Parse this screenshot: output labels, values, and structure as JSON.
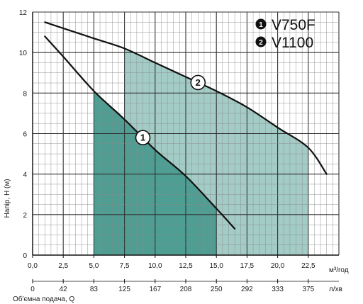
{
  "chart_data": {
    "type": "line",
    "xlim": [
      0,
      25
    ],
    "ylim": [
      0,
      12
    ],
    "x_ticks": [
      "0,0",
      "2,5",
      "5,0",
      "7,5",
      "10,0",
      "12,5",
      "15,0",
      "17,5",
      "20,0",
      "22,5"
    ],
    "x_unit_label": "м³/год",
    "x2_ticks": [
      "0",
      "42",
      "83",
      "125",
      "167",
      "208",
      "250",
      "292",
      "333",
      "375"
    ],
    "x2_unit_label": "л/хв",
    "y_ticks": [
      "0",
      "2",
      "4",
      "6",
      "8",
      "10",
      "12"
    ],
    "ylabel": "Напір, H (м)",
    "xlabel": "Об'ємна подача, Q",
    "grid": true,
    "legend_position": "top-right",
    "series": [
      {
        "name": "V750F",
        "marker": "1",
        "x": [
          1,
          2.5,
          5,
          7.5,
          10,
          12.5,
          15,
          16.5
        ],
        "y": [
          10.8,
          9.8,
          8.1,
          6.7,
          5.2,
          3.9,
          2.3,
          1.3
        ],
        "operating_range": [
          5,
          15
        ],
        "color": "#4e9e93"
      },
      {
        "name": "V1100",
        "marker": "2",
        "x": [
          1,
          2.5,
          5,
          7.5,
          10,
          12.5,
          15,
          17.5,
          20,
          22.5,
          24
        ],
        "y": [
          11.5,
          11.2,
          10.7,
          10.2,
          9.5,
          8.8,
          8.1,
          7.3,
          6.3,
          5.3,
          4.0
        ],
        "operating_range": [
          7.5,
          22.5
        ],
        "color": "#a4ccc6"
      }
    ]
  }
}
